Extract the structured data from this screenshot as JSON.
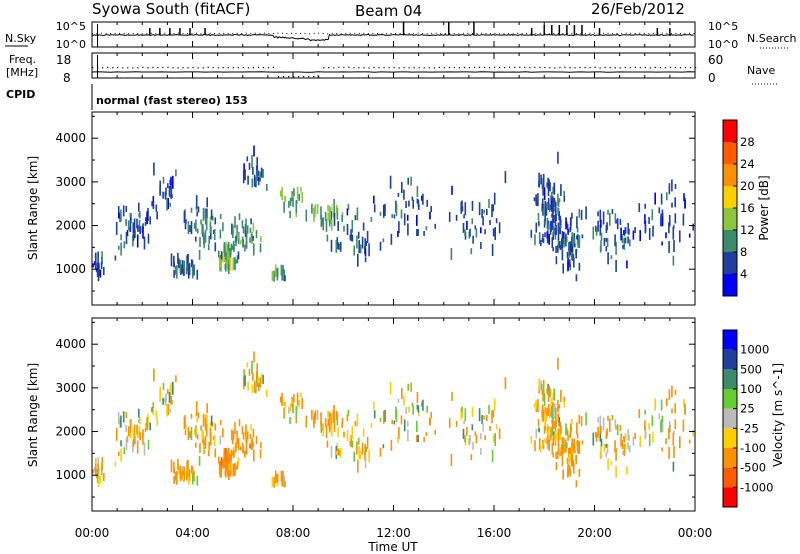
{
  "header": {
    "station": "Syowa South (fitACF)",
    "beam": "Beam 04",
    "date": "26/Feb/2012"
  },
  "noise_panel": {
    "left_label": "N.Sky",
    "right_label": "N.Search",
    "left_ticks": [
      "10^5",
      "10^0"
    ],
    "right_ticks": [
      "10^5",
      "10^0"
    ]
  },
  "freq_panel": {
    "left_label_1": "Freq.",
    "left_label_2": "[MHz]",
    "right_label": "Nave",
    "left_ticks": [
      "18",
      "8"
    ],
    "right_ticks": [
      "60",
      "0"
    ]
  },
  "cpid": {
    "label": "CPID",
    "text": "normal (fast stereo) 153"
  },
  "power_panel": {
    "ylabel": "Slant Range [km]",
    "cbar_label": "Power [dB]",
    "cbar_ticks": [
      "28",
      "24",
      "20",
      "16",
      "12",
      "8",
      "4"
    ],
    "cbar_colors": [
      "#ff0000",
      "#ff5a00",
      "#ff9000",
      "#ffd000",
      "#8cc63f",
      "#3c8a6e",
      "#1f3f9f",
      "#0000ff"
    ]
  },
  "velocity_panel": {
    "ylabel": "Slant Range [km]",
    "cbar_label": "Velocity [m s^-1]",
    "cbar_ticks": [
      "1000",
      "500",
      "100",
      "25",
      "-25",
      "-100",
      "-500",
      "-1000"
    ],
    "cbar_colors": [
      "#0000ff",
      "#1f3f9f",
      "#3c8a6e",
      "#66cc33",
      "#bbbbbb",
      "#ffd000",
      "#ff9000",
      "#ff5a00",
      "#ff0000"
    ]
  },
  "x_axis": {
    "label": "Time UT",
    "ticks": [
      "00:00",
      "04:00",
      "08:00",
      "12:00",
      "16:00",
      "20:00",
      "00:00"
    ]
  },
  "chart_data": {
    "type": "heatmap",
    "x": {
      "label": "Time UT",
      "range_hours": [
        0,
        24
      ],
      "ticks": [
        "00:00",
        "04:00",
        "08:00",
        "12:00",
        "16:00",
        "20:00",
        "00:00"
      ]
    },
    "y": {
      "label": "Slant Range [km]",
      "range": [
        180,
        4600
      ],
      "ticks": [
        1000,
        2000,
        3000,
        4000
      ]
    },
    "panels": [
      "Power [dB]",
      "Velocity [m s^-1]"
    ],
    "echo_clusters": [
      {
        "t": 0.2,
        "r": 1000,
        "dt": 0.4,
        "dr": 450,
        "n": 20,
        "p": 6,
        "v": -100
      },
      {
        "t": 1.5,
        "r": 1900,
        "dt": 1.2,
        "dr": 800,
        "n": 45,
        "p": 7,
        "v": -50
      },
      {
        "t": 2.8,
        "r": 2700,
        "dt": 1.0,
        "dr": 700,
        "n": 25,
        "p": 6,
        "v": -60
      },
      {
        "t": 3.6,
        "r": 950,
        "dt": 0.8,
        "dr": 300,
        "n": 35,
        "p": 8,
        "v": -150
      },
      {
        "t": 4.4,
        "r": 1900,
        "dt": 1.2,
        "dr": 900,
        "n": 45,
        "p": 9,
        "v": -120
      },
      {
        "t": 5.4,
        "r": 1150,
        "dt": 0.6,
        "dr": 350,
        "n": 45,
        "p": 12,
        "v": -300
      },
      {
        "t": 6.0,
        "r": 1700,
        "dt": 0.9,
        "dr": 700,
        "n": 45,
        "p": 10,
        "v": -250
      },
      {
        "t": 6.4,
        "r": 3100,
        "dt": 0.8,
        "dr": 600,
        "n": 25,
        "p": 6,
        "v": -80
      },
      {
        "t": 7.4,
        "r": 800,
        "dt": 0.4,
        "dr": 200,
        "n": 12,
        "p": 9,
        "v": -200
      },
      {
        "t": 7.9,
        "r": 2500,
        "dt": 0.9,
        "dr": 500,
        "n": 20,
        "p": 12,
        "v": -150
      },
      {
        "t": 9.4,
        "r": 2150,
        "dt": 1.0,
        "dr": 400,
        "n": 30,
        "p": 12,
        "v": -200
      },
      {
        "t": 10.4,
        "r": 1600,
        "dt": 1.5,
        "dr": 900,
        "n": 35,
        "p": 7,
        "v": -80
      },
      {
        "t": 12.5,
        "r": 2200,
        "dt": 2.0,
        "dr": 1200,
        "n": 45,
        "p": 6,
        "v": -40
      },
      {
        "t": 15.3,
        "r": 2000,
        "dt": 1.8,
        "dr": 1200,
        "n": 40,
        "p": 6,
        "v": -40
      },
      {
        "t": 18.2,
        "r": 2200,
        "dt": 0.8,
        "dr": 1400,
        "n": 110,
        "p": 7,
        "v": -150
      },
      {
        "t": 19.0,
        "r": 1500,
        "dt": 0.8,
        "dr": 1100,
        "n": 60,
        "p": 7,
        "v": -200
      },
      {
        "t": 20.8,
        "r": 1700,
        "dt": 1.6,
        "dr": 1000,
        "n": 50,
        "p": 6,
        "v": -100
      },
      {
        "t": 22.8,
        "r": 2000,
        "dt": 1.4,
        "dr": 1200,
        "n": 40,
        "p": 6,
        "v": -60
      }
    ]
  }
}
